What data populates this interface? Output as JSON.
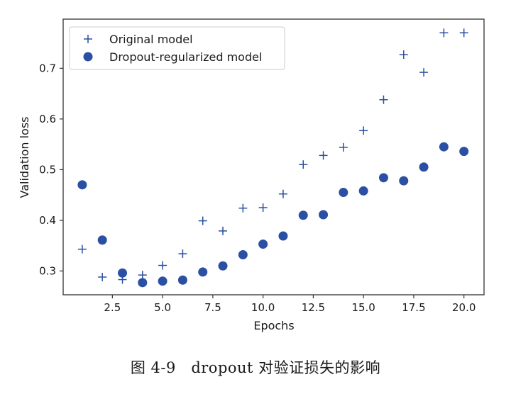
{
  "chart_data": {
    "type": "scatter",
    "xlabel": "Epochs",
    "ylabel": "Validation loss",
    "xlim": [
      0.05,
      21.0
    ],
    "ylim": [
      0.253,
      0.797
    ],
    "xticks": [
      2.5,
      5.0,
      7.5,
      10.0,
      12.5,
      15.0,
      17.5,
      20.0
    ],
    "xtick_labels": [
      "2.5",
      "5.0",
      "7.5",
      "10.0",
      "12.5",
      "15.0",
      "17.5",
      "20.0"
    ],
    "yticks": [
      0.3,
      0.4,
      0.5,
      0.6,
      0.7
    ],
    "ytick_labels": [
      "0.3",
      "0.4",
      "0.5",
      "0.6",
      "0.7"
    ],
    "legend_position": "top-left",
    "marker_color": "#2a4fa3",
    "series": [
      {
        "name": "Original model",
        "marker": "plus",
        "x": [
          1,
          2,
          3,
          4,
          5,
          6,
          7,
          8,
          9,
          10,
          11,
          12,
          13,
          14,
          15,
          16,
          17,
          18,
          19,
          20
        ],
        "y": [
          0.343,
          0.288,
          0.283,
          0.292,
          0.311,
          0.334,
          0.399,
          0.379,
          0.424,
          0.425,
          0.452,
          0.51,
          0.528,
          0.544,
          0.577,
          0.638,
          0.727,
          0.692,
          0.77,
          0.77
        ]
      },
      {
        "name": "Dropout-regularized model",
        "marker": "circle",
        "x": [
          1,
          2,
          3,
          4,
          5,
          6,
          7,
          8,
          9,
          10,
          11,
          12,
          13,
          14,
          15,
          16,
          17,
          18,
          19,
          20
        ],
        "y": [
          0.47,
          0.361,
          0.296,
          0.277,
          0.28,
          0.282,
          0.298,
          0.31,
          0.332,
          0.353,
          0.369,
          0.41,
          0.411,
          0.455,
          0.458,
          0.484,
          0.478,
          0.505,
          0.545,
          0.536
        ]
      }
    ]
  },
  "caption": "图 4-9　dropout 对验证损失的影响"
}
